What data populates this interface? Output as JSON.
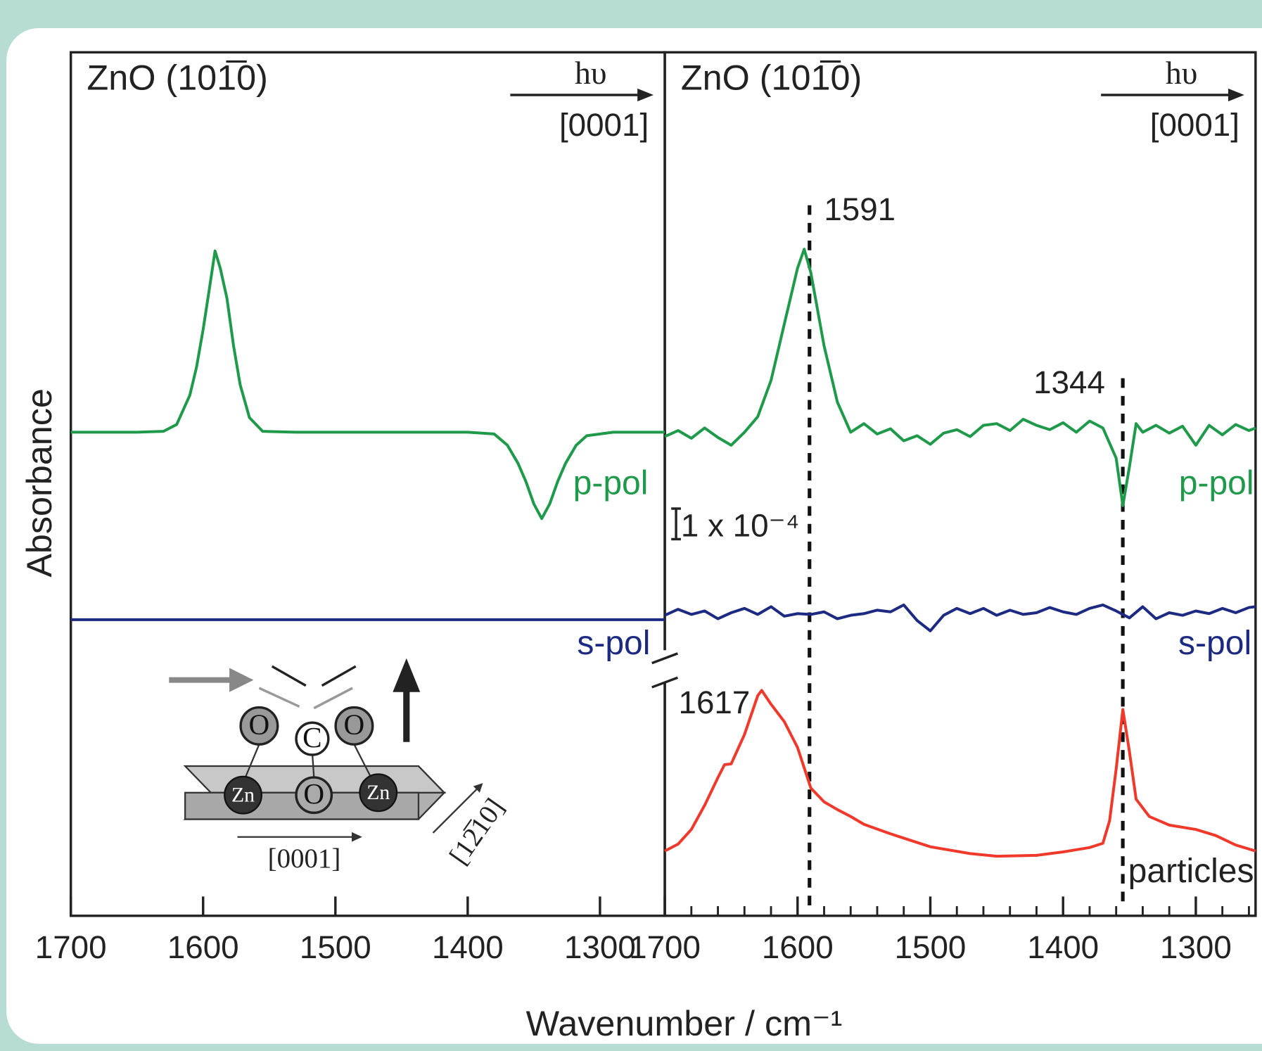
{
  "chart_data": [
    {
      "type": "line",
      "title": "ZnO (101̅0)",
      "xlabel": "Wavenumber / cm⁻¹",
      "ylabel": "Absorbance",
      "beam": {
        "label": "hυ",
        "direction": "[0001]"
      },
      "xlim": [
        1700,
        1251
      ],
      "xticks": [
        1700,
        1600,
        1500,
        1400,
        1300
      ],
      "ylim": [
        0,
        100
      ],
      "series": [
        {
          "name": "p-pol",
          "color": "#1f9a4b",
          "x": [
            1700,
            1650,
            1630,
            1620,
            1610,
            1605,
            1600,
            1595,
            1591,
            1587,
            1582,
            1577,
            1572,
            1565,
            1555,
            1530,
            1400,
            1380,
            1370,
            1362,
            1356,
            1350,
            1344,
            1338,
            1332,
            1326,
            1318,
            1310,
            1290,
            1251
          ],
          "values": [
            56,
            56,
            56.1,
            56.9,
            60.3,
            63.5,
            67.9,
            72.9,
            77,
            75,
            71.5,
            66,
            61.5,
            57.7,
            56.1,
            56,
            56,
            55.8,
            54.5,
            52.4,
            50.3,
            47.7,
            46,
            47.7,
            50.3,
            52.4,
            54.5,
            55.6,
            56,
            56
          ]
        },
        {
          "name": "s-pol",
          "color": "#1c2a82",
          "x": [
            1700,
            1251
          ],
          "values": [
            34.3,
            34.3
          ]
        }
      ],
      "inset": {
        "atoms": [
          "O",
          "C",
          "O",
          "Zn",
          "O",
          "Zn"
        ],
        "axes": [
          "[0001]",
          "[12̅10]"
        ]
      }
    },
    {
      "type": "line",
      "title": "ZnO (101̅0)",
      "beam": {
        "label": "hυ",
        "direction": "[0001]"
      },
      "xlim": [
        1700,
        1255
      ],
      "xticks": [
        1700,
        1600,
        1500,
        1400,
        1300
      ],
      "xminorticks": [
        1680,
        1660,
        1640,
        1620,
        1580,
        1560,
        1540,
        1520,
        1480,
        1460,
        1440,
        1420,
        1380,
        1360,
        1340,
        1320,
        1280,
        1260
      ],
      "ylim": [
        0,
        100
      ],
      "scale_bar": "1 x 10⁻⁴",
      "annotations": [
        {
          "label": "1591",
          "x": 1591
        },
        {
          "label": "1344",
          "x": 1355
        }
      ],
      "peak_label": "1617",
      "series": [
        {
          "name": "p-pol",
          "color": "#1f9a4b",
          "x": [
            1700,
            1690,
            1680,
            1670,
            1660,
            1650,
            1640,
            1630,
            1620,
            1610,
            1600,
            1595,
            1590,
            1580,
            1570,
            1560,
            1550,
            1540,
            1530,
            1520,
            1510,
            1500,
            1490,
            1480,
            1470,
            1460,
            1450,
            1440,
            1430,
            1420,
            1410,
            1400,
            1390,
            1380,
            1370,
            1360,
            1355,
            1350,
            1345,
            1340,
            1330,
            1320,
            1310,
            1300,
            1290,
            1280,
            1270,
            1260,
            1255
          ],
          "values": [
            55.5,
            56.2,
            55.3,
            56.5,
            55.4,
            54.5,
            56.0,
            57.8,
            62.0,
            68.5,
            75.0,
            77.2,
            74.5,
            66.0,
            59.5,
            56.0,
            57.0,
            55.8,
            56.4,
            55.0,
            55.6,
            54.6,
            55.9,
            56.3,
            55.5,
            56.8,
            57.0,
            56.2,
            57.5,
            56.8,
            56.3,
            57.1,
            56.0,
            57.3,
            56.5,
            53.0,
            47.5,
            52.0,
            57.0,
            56.0,
            56.8,
            55.9,
            56.7,
            54.5,
            56.8,
            55.7,
            56.9,
            56.2,
            56.5
          ]
        },
        {
          "name": "s-pol",
          "color": "#1c2a82",
          "x": [
            1700,
            1690,
            1680,
            1670,
            1660,
            1650,
            1640,
            1630,
            1620,
            1610,
            1600,
            1590,
            1580,
            1570,
            1560,
            1550,
            1540,
            1530,
            1520,
            1510,
            1500,
            1490,
            1480,
            1470,
            1460,
            1450,
            1440,
            1430,
            1420,
            1410,
            1400,
            1390,
            1380,
            1370,
            1360,
            1350,
            1340,
            1330,
            1320,
            1310,
            1300,
            1290,
            1280,
            1270,
            1260,
            1255
          ],
          "values": [
            34.8,
            35.5,
            34.9,
            35.3,
            34.4,
            35.1,
            35.6,
            34.9,
            35.8,
            34.7,
            35.0,
            34.9,
            35.2,
            34.4,
            34.8,
            35.0,
            35.4,
            35.2,
            36.0,
            34.2,
            33.0,
            34.8,
            35.6,
            35.0,
            35.6,
            34.8,
            35.4,
            34.9,
            35.1,
            35.7,
            35.2,
            34.9,
            35.6,
            36.0,
            35.3,
            34.5,
            35.8,
            34.4,
            35.1,
            34.8,
            35.3,
            35.0,
            35.6,
            35.1,
            35.7,
            35.8
          ]
        },
        {
          "name": "particles",
          "color": "#f0392a",
          "x": [
            1700,
            1690,
            1680,
            1670,
            1660,
            1655,
            1650,
            1640,
            1630,
            1627,
            1620,
            1610,
            1600,
            1590,
            1580,
            1570,
            1560,
            1550,
            1530,
            1500,
            1470,
            1450,
            1420,
            1400,
            1380,
            1370,
            1365,
            1360,
            1355,
            1350,
            1345,
            1335,
            1320,
            1300,
            1285,
            1270,
            1255
          ],
          "values": [
            7.5,
            8.3,
            10.0,
            12.8,
            16.0,
            17.5,
            17.6,
            21,
            25.5,
            26.1,
            24.5,
            22.5,
            19.5,
            14.8,
            13.2,
            12.3,
            11.5,
            10.6,
            9.5,
            8.0,
            7.2,
            6.9,
            7.0,
            7.4,
            7.9,
            8.4,
            11.0,
            17.0,
            23.9,
            19.0,
            13.5,
            11.5,
            10.5,
            10.0,
            9.3,
            8.2,
            7.5
          ]
        }
      ]
    }
  ]
}
